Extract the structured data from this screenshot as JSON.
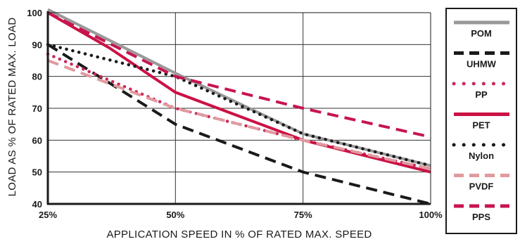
{
  "chart_data": {
    "type": "line",
    "title": "",
    "xlabel": "APPLICATION SPEED IN % OF RATED MAX. SPEED",
    "ylabel": "LOAD AS % OF RATED MAX. LOAD",
    "x": [
      25,
      50,
      75,
      100
    ],
    "x_tick_labels": [
      "25%",
      "50%",
      "75%",
      "100%"
    ],
    "y_ticks": [
      40,
      50,
      60,
      70,
      80,
      90,
      100
    ],
    "xlim": [
      25,
      100
    ],
    "ylim": [
      40,
      100
    ],
    "grid": true,
    "legend_position": "right",
    "series": [
      {
        "name": "POM",
        "color": "#999999",
        "style": "solid",
        "points": [
          [
            25,
            101
          ],
          [
            50,
            81
          ],
          [
            75,
            62
          ],
          [
            100,
            52
          ]
        ]
      },
      {
        "name": "UHMW",
        "color": "#1a1a1a",
        "style": "dashed",
        "points": [
          [
            25,
            90
          ],
          [
            50,
            65
          ],
          [
            75,
            50
          ],
          [
            100,
            40
          ]
        ]
      },
      {
        "name": "PP",
        "color": "#cc2a5a",
        "style": "dotted",
        "points": [
          [
            25,
            87
          ],
          [
            50,
            70
          ],
          [
            75,
            60
          ],
          [
            100,
            51
          ]
        ]
      },
      {
        "name": "PET",
        "color": "#cc1144",
        "style": "solid",
        "points": [
          [
            25,
            100
          ],
          [
            37,
            89
          ],
          [
            50,
            75
          ],
          [
            75,
            60
          ],
          [
            100,
            50
          ]
        ]
      },
      {
        "name": "Nylon",
        "color": "#1a1a1a",
        "style": "dotted",
        "points": [
          [
            25,
            90
          ],
          [
            50,
            80
          ],
          [
            75,
            62
          ],
          [
            100,
            52
          ]
        ]
      },
      {
        "name": "PVDF",
        "color": "#e09aa0",
        "style": "dashed",
        "points": [
          [
            25,
            85
          ],
          [
            50,
            70
          ],
          [
            75,
            60
          ],
          [
            100,
            51
          ]
        ]
      },
      {
        "name": "PPS",
        "color": "#c8144f",
        "style": "dashed",
        "points": [
          [
            25,
            100
          ],
          [
            50,
            80
          ],
          [
            75,
            70
          ],
          [
            100,
            61
          ]
        ]
      }
    ]
  }
}
